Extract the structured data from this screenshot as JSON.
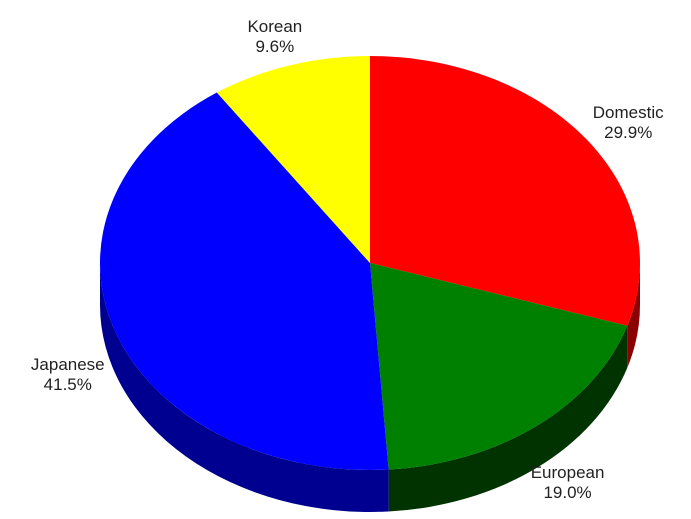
{
  "chart_data": {
    "type": "pie",
    "title": "",
    "three_d": true,
    "slices": [
      {
        "label": "Domestic",
        "value": 29.9,
        "value_label": "29.9%",
        "color": "#ff0000",
        "side_color": "#8b0000"
      },
      {
        "label": "European",
        "value": 19.0,
        "value_label": "19.0%",
        "color": "#008000",
        "side_color": "#003300"
      },
      {
        "label": "Japanese",
        "value": 41.5,
        "value_label": "41.5%",
        "color": "#0000ff",
        "side_color": "#000090"
      },
      {
        "label": "Korean",
        "value": 9.6,
        "value_label": "9.6%",
        "color": "#ffff00",
        "side_color": "#9a9a00"
      }
    ]
  }
}
